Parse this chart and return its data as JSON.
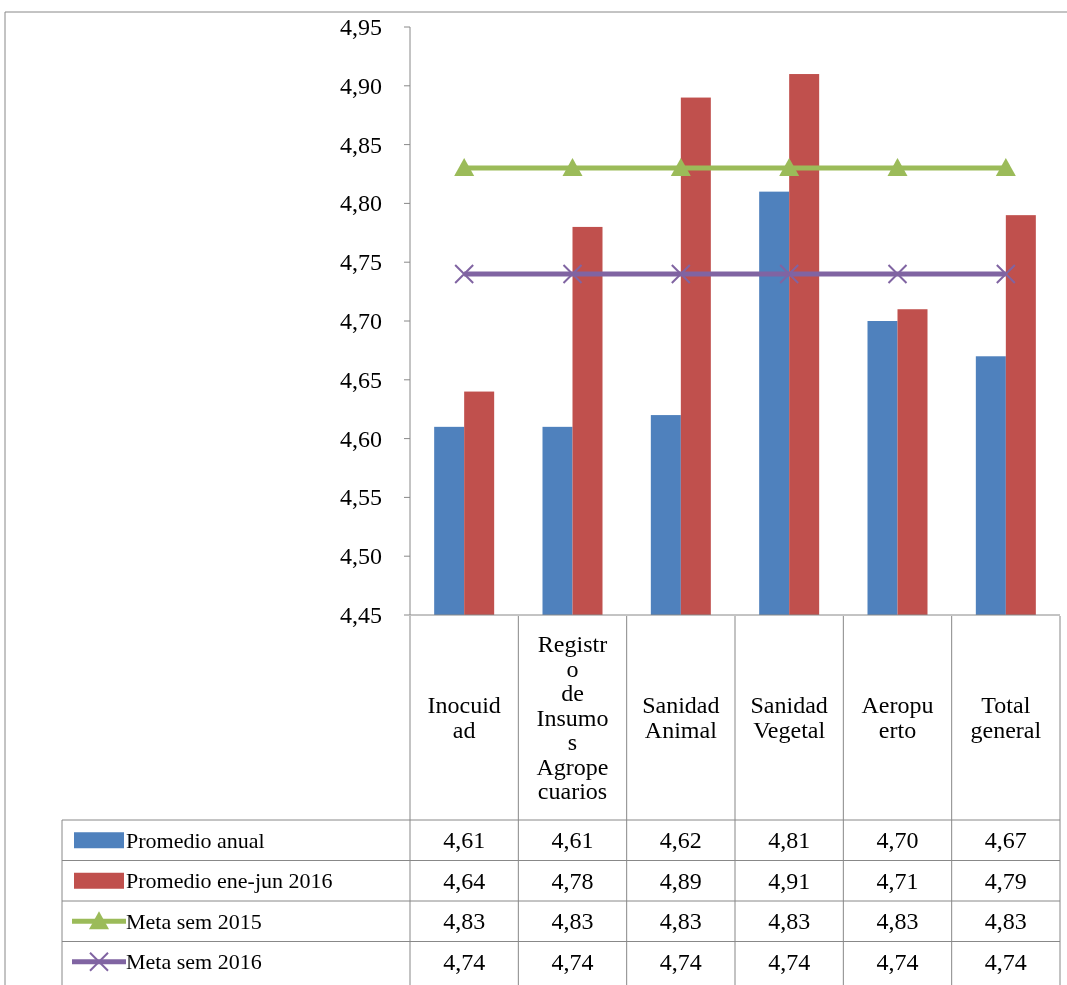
{
  "chart_data": {
    "type": "bar",
    "categories": [
      "Inocuidad",
      "Registro de Insumos Agropecuarios",
      "Sanidad Animal",
      "Sanidad Vegetal",
      "Aeropuerto",
      "Total general"
    ],
    "series": [
      {
        "name": "Promedio anual",
        "color": "#4f81bd",
        "values": [
          4.61,
          4.61,
          4.62,
          4.81,
          4.7,
          4.67
        ],
        "value_labels": [
          "4,61",
          "4,61",
          "4,62",
          "4,81",
          "4,70",
          "4,67"
        ]
      },
      {
        "name": "Promedio ene-jun 2016",
        "color": "#c0504d",
        "values": [
          4.64,
          4.78,
          4.89,
          4.91,
          4.71,
          4.79
        ],
        "value_labels": [
          "4,64",
          "4,78",
          "4,89",
          "4,91",
          "4,71",
          "4,79"
        ]
      },
      {
        "name": "Meta sem 2015",
        "type": "line",
        "color": "#9bbb59",
        "marker": "triangle",
        "values": [
          4.83,
          4.83,
          4.83,
          4.83,
          4.83,
          4.83
        ],
        "value_labels": [
          "4,83",
          "4,83",
          "4,83",
          "4,83",
          "4,83",
          "4,83"
        ]
      },
      {
        "name": "Meta sem 2016",
        "type": "line",
        "color": "#8064a2",
        "marker": "cross",
        "values": [
          4.74,
          4.74,
          4.74,
          4.74,
          4.74,
          4.74
        ],
        "value_labels": [
          "4,74",
          "4,74",
          "4,74",
          "4,74",
          "4,74",
          "4,74"
        ]
      }
    ],
    "ylim": [
      4.45,
      4.95
    ],
    "yticks": [
      {
        "value": 4.45,
        "label": "4,45"
      },
      {
        "value": 4.5,
        "label": "4,50"
      },
      {
        "value": 4.55,
        "label": "4,55"
      },
      {
        "value": 4.6,
        "label": "4,60"
      },
      {
        "value": 4.65,
        "label": "4,65"
      },
      {
        "value": 4.7,
        "label": "4,70"
      },
      {
        "value": 4.75,
        "label": "4,75"
      },
      {
        "value": 4.8,
        "label": "4,80"
      },
      {
        "value": 4.85,
        "label": "4,85"
      },
      {
        "value": 4.9,
        "label": "4,90"
      },
      {
        "value": 4.95,
        "label": "4,95"
      }
    ],
    "grid": false,
    "legend": "bottom"
  }
}
